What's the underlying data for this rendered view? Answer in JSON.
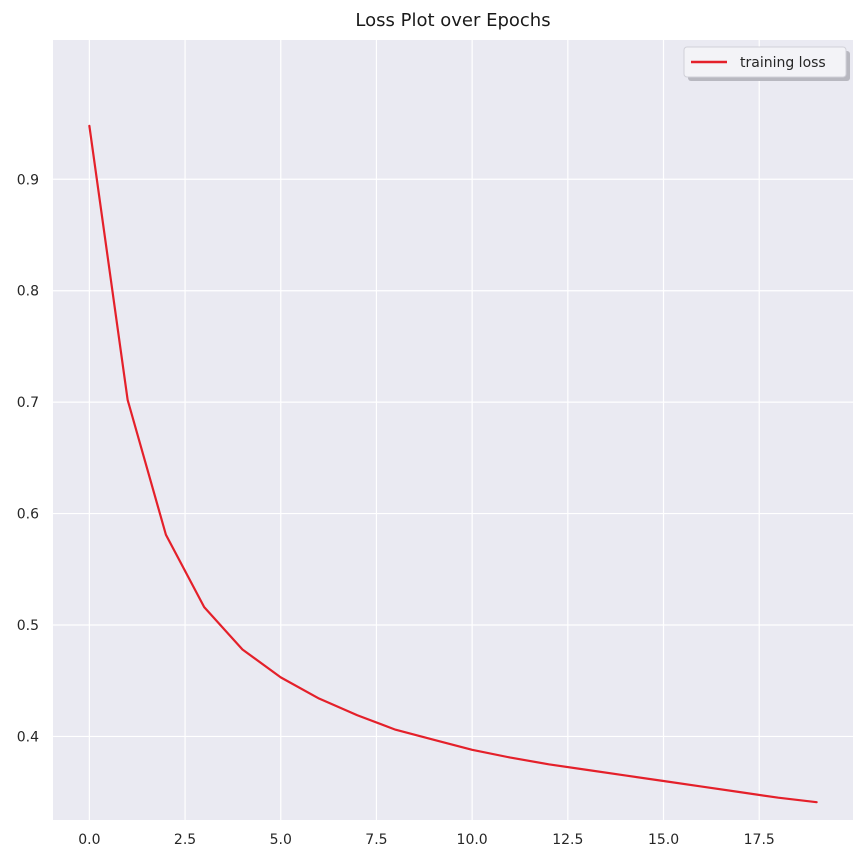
{
  "chart_data": {
    "type": "line",
    "title": "Loss Plot over Epochs",
    "xlabel": "",
    "ylabel": "",
    "xlim": [
      -0.95,
      19.95
    ],
    "ylim": [
      0.325,
      1.025
    ],
    "xticks": [
      0,
      2.5,
      5,
      7.5,
      10,
      12.5,
      15,
      17.5
    ],
    "xtick_labels": [
      "0.0",
      "2.5",
      "5.0",
      "7.5",
      "10.0",
      "12.5",
      "15.0",
      "17.5"
    ],
    "yticks": [
      0.4,
      0.5,
      0.6,
      0.7,
      0.8,
      0.9
    ],
    "ytick_labels": [
      "0.4",
      "0.5",
      "0.6",
      "0.7",
      "0.8",
      "0.9"
    ],
    "grid": true,
    "legend_position": "top-right",
    "background_color": "#eaeaf2",
    "grid_color": "#ffffff",
    "series": [
      {
        "name": "training loss",
        "color": "#e4202a",
        "x": [
          0,
          1,
          2,
          3,
          4,
          5,
          6,
          7,
          8,
          9,
          10,
          11,
          12,
          13,
          14,
          15,
          16,
          17,
          18,
          19
        ],
        "values": [
          0.948,
          0.702,
          0.581,
          0.516,
          0.478,
          0.453,
          0.434,
          0.419,
          0.406,
          0.397,
          0.388,
          0.381,
          0.375,
          0.37,
          0.365,
          0.36,
          0.355,
          0.35,
          0.345,
          0.341
        ]
      }
    ]
  }
}
